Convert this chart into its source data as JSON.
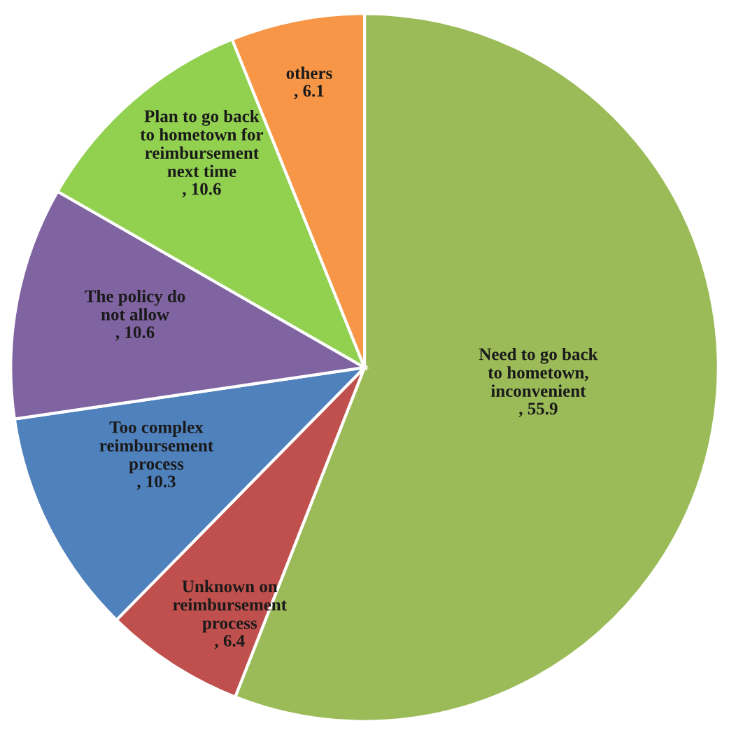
{
  "chart_data": {
    "type": "pie",
    "categories": [
      "Need to go back\nto hometown,\ninconvenient",
      "Unknown on\nreimbursement\nprocess",
      "Too complex\nreimbursement\nprocess",
      "The policy do\nnot allow",
      "Plan to go back\nto hometown for\nreimbursement\nnext time",
      "others"
    ],
    "values": [
      55.9,
      6.4,
      10.3,
      10.6,
      10.6,
      6.1
    ],
    "colors": [
      "#9bbb59",
      "#c0504d",
      "#4f81bd",
      "#8064a2",
      "#92d050",
      "#f79646"
    ],
    "value_labels": [
      ", 55.9",
      ", 6.4",
      ", 10.3",
      ", 10.6",
      ", 10.6",
      ", 6.1"
    ]
  }
}
